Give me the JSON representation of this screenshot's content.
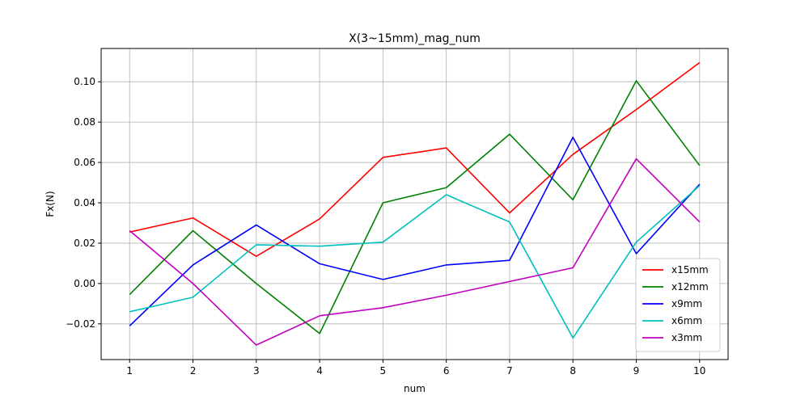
{
  "chart_data": {
    "type": "line",
    "title": "X(3~15mm)_mag_num",
    "xlabel": "num",
    "ylabel": "Fx(N)",
    "x": [
      1,
      2,
      3,
      4,
      5,
      6,
      7,
      8,
      9,
      10
    ],
    "xticks": [
      "1",
      "2",
      "3",
      "4",
      "5",
      "6",
      "7",
      "8",
      "9",
      "10"
    ],
    "xlim": [
      0.55,
      10.45
    ],
    "ylim": [
      -0.0377,
      0.1165
    ],
    "yticks": [
      "−0.02",
      "0.00",
      "0.02",
      "0.04",
      "0.06",
      "0.08",
      "0.10"
    ],
    "ytick_values": [
      -0.02,
      0.0,
      0.02,
      0.04,
      0.06,
      0.08,
      0.1
    ],
    "grid": true,
    "legend_position": "bottom-right",
    "series": [
      {
        "name": "x15mm",
        "color": "#ff0000",
        "values": [
          0.0255,
          0.0325,
          0.0135,
          0.032,
          0.0625,
          0.0672,
          0.035,
          0.064,
          0.0862,
          0.1095
        ]
      },
      {
        "name": "x12mm",
        "color": "#008000",
        "values": [
          -0.0055,
          0.0262,
          0.0,
          -0.0248,
          0.04,
          0.0475,
          0.074,
          0.0415,
          0.1005,
          0.0585
        ]
      },
      {
        "name": "x9mm",
        "color": "#0000ff",
        "values": [
          -0.021,
          0.0092,
          0.029,
          0.0098,
          0.002,
          0.0092,
          0.0115,
          0.0725,
          0.0148,
          0.0492
        ]
      },
      {
        "name": "x6mm",
        "color": "#00bfbf",
        "values": [
          -0.014,
          -0.0068,
          0.0192,
          0.0185,
          0.0205,
          0.044,
          0.0305,
          -0.027,
          0.0205,
          0.0485
        ]
      },
      {
        "name": "x3mm",
        "color": "#bf00bf",
        "values": [
          0.0262,
          0.0,
          -0.0305,
          -0.016,
          -0.012,
          -0.0058,
          0.001,
          0.0078,
          0.0618,
          0.0305
        ]
      }
    ]
  }
}
